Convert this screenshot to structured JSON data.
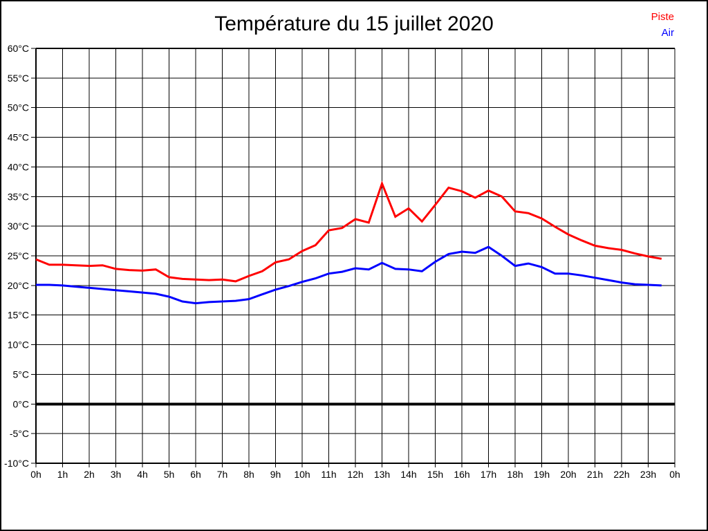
{
  "title": "Température du 15 juillet 2020",
  "legend": {
    "position": "top-right",
    "items": [
      {
        "label": "Piste",
        "color": "#ff0000"
      },
      {
        "label": "Air",
        "color": "#0000ff"
      }
    ]
  },
  "chart_data": {
    "type": "line",
    "title": "Température du 15 juillet 2020",
    "xlabel": "",
    "ylabel": "",
    "xlim": [
      0,
      24
    ],
    "ylim": [
      -10,
      60
    ],
    "y_step": 5,
    "grid": true,
    "grid_color": "#000000",
    "zero_line_value": 0,
    "legend_position": "top-right",
    "x_tick_labels": [
      "0h",
      "1h",
      "2h",
      "3h",
      "4h",
      "5h",
      "6h",
      "7h",
      "8h",
      "9h",
      "10h",
      "11h",
      "12h",
      "13h",
      "14h",
      "15h",
      "16h",
      "17h",
      "18h",
      "19h",
      "20h",
      "21h",
      "22h",
      "23h",
      "0h"
    ],
    "y_tick_labels": [
      "60°C",
      "55°C",
      "50°C",
      "45°C",
      "40°C",
      "35°C",
      "30°C",
      "25°C",
      "20°C",
      "15°C",
      "10°C",
      "5°C",
      "0°C",
      "-5°C",
      "-10°C"
    ],
    "x": [
      0,
      0.5,
      1,
      1.5,
      2,
      2.5,
      3,
      3.5,
      4,
      4.5,
      5,
      5.5,
      6,
      6.5,
      7,
      7.5,
      8,
      8.5,
      9,
      9.5,
      10,
      10.5,
      11,
      11.5,
      12,
      12.5,
      13,
      13.5,
      14,
      14.5,
      15,
      15.5,
      16,
      16.5,
      17,
      17.5,
      18,
      18.5,
      19,
      19.5,
      20,
      20.5,
      21,
      21.5,
      22,
      22.5,
      23,
      23.5
    ],
    "series": [
      {
        "name": "Piste",
        "color": "#ff0000",
        "values": [
          24.4,
          23.5,
          23.5,
          23.4,
          23.3,
          23.4,
          22.8,
          22.6,
          22.5,
          22.7,
          21.4,
          21.1,
          21.0,
          20.9,
          21.0,
          20.7,
          21.6,
          22.4,
          23.9,
          24.4,
          25.8,
          26.8,
          29.3,
          29.7,
          31.2,
          30.6,
          37.2,
          31.6,
          33.0,
          30.8,
          33.6,
          36.5,
          35.9,
          34.8,
          36.0,
          35.0,
          32.5,
          32.2,
          31.3,
          29.9,
          28.6,
          27.6,
          26.7,
          26.3,
          26.0,
          25.4,
          24.9,
          24.5
        ]
      },
      {
        "name": "Air",
        "color": "#0000ff",
        "values": [
          20.1,
          20.1,
          20.0,
          19.8,
          19.6,
          19.4,
          19.2,
          19.0,
          18.8,
          18.6,
          18.1,
          17.3,
          17.0,
          17.2,
          17.3,
          17.4,
          17.7,
          18.5,
          19.3,
          19.9,
          20.6,
          21.2,
          22.0,
          22.3,
          22.9,
          22.7,
          23.8,
          22.8,
          22.7,
          22.4,
          24.0,
          25.3,
          25.7,
          25.5,
          26.5,
          25.0,
          23.3,
          23.7,
          23.1,
          22.0,
          22.0,
          21.7,
          21.3,
          20.9,
          20.5,
          20.2,
          20.1,
          20.0
        ]
      }
    ]
  }
}
